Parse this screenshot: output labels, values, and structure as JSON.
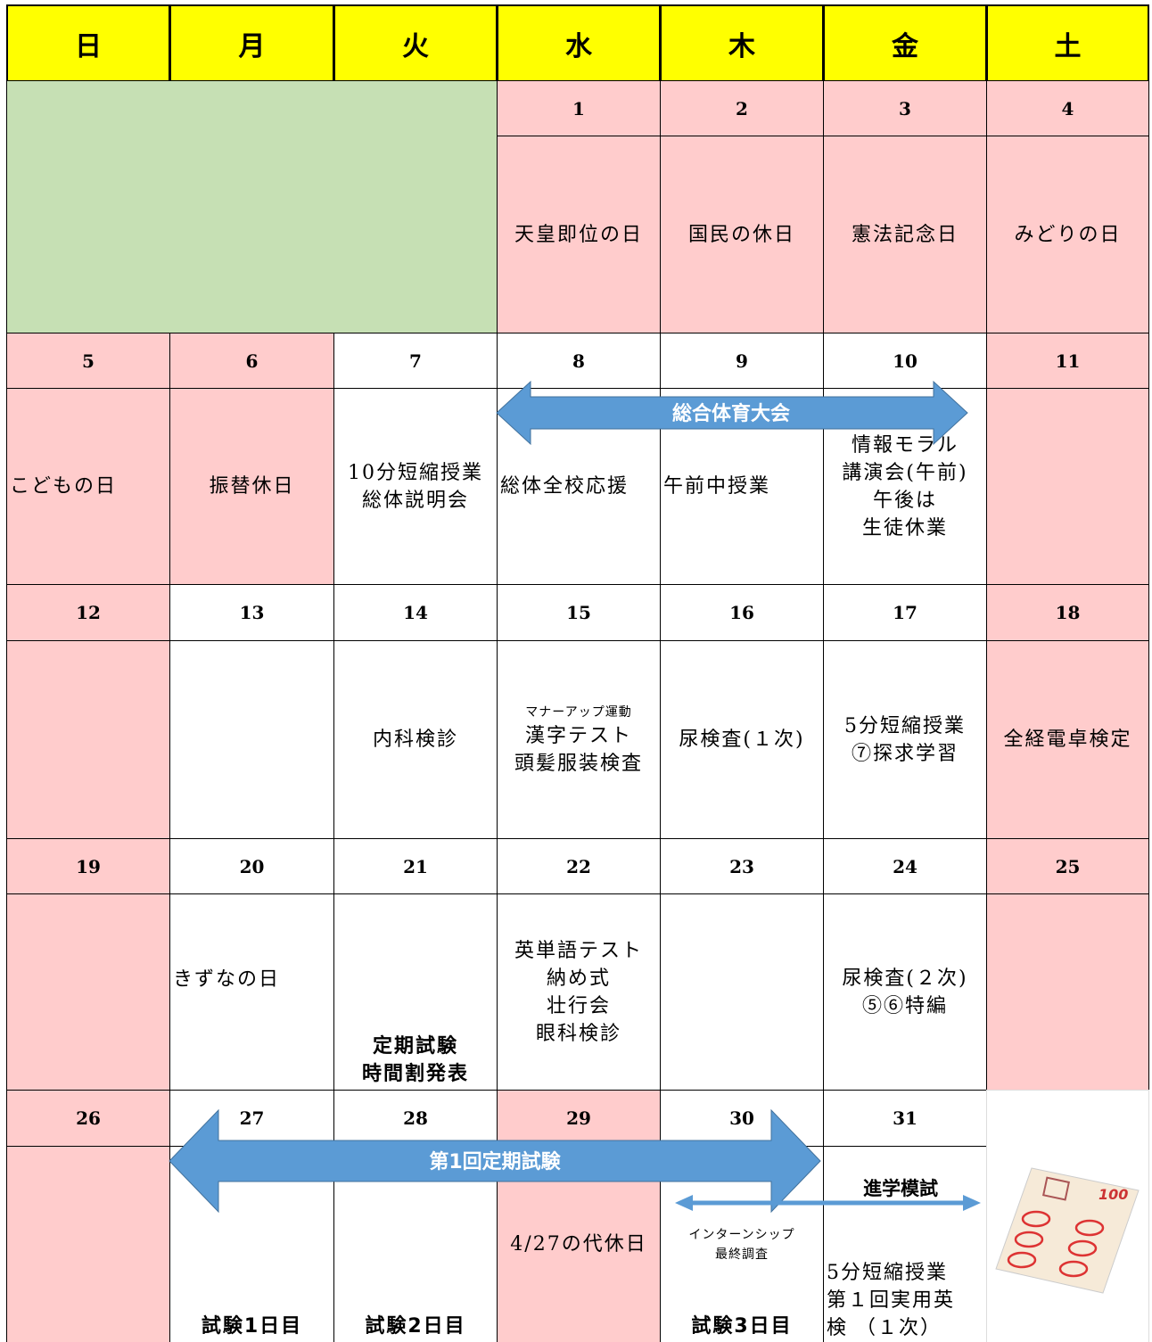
{
  "header": {
    "days": [
      "日",
      "月",
      "火",
      "水",
      "木",
      "金",
      "土"
    ]
  },
  "weeks": [
    {
      "cells": [
        {
          "date": null
        },
        {
          "date": null
        },
        {
          "date": null
        },
        {
          "date": 1,
          "holiday": true,
          "lines": [
            "天皇即位の日"
          ]
        },
        {
          "date": 2,
          "holiday": true,
          "lines": [
            "国民の休日"
          ]
        },
        {
          "date": 3,
          "holiday": true,
          "lines": [
            "憲法記念日"
          ]
        },
        {
          "date": 4,
          "holiday": true,
          "lines": [
            "みどりの日"
          ]
        }
      ]
    },
    {
      "cells": [
        {
          "date": 5,
          "holiday": true,
          "lines": [
            "こどもの日"
          ]
        },
        {
          "date": 6,
          "holiday": true,
          "lines": [
            "振替休日"
          ]
        },
        {
          "date": 7,
          "lines": [
            "10分短縮授業",
            "総体説明会"
          ]
        },
        {
          "date": 8,
          "lines": [
            "総体全校応援"
          ]
        },
        {
          "date": 9,
          "lines": [
            "午前中授業"
          ]
        },
        {
          "date": 10,
          "lines": [
            "情報モラル",
            "講演会(午前)",
            "午後は",
            "生徒休業"
          ]
        },
        {
          "date": 11,
          "holiday": true
        }
      ]
    },
    {
      "cells": [
        {
          "date": 12,
          "holiday": true
        },
        {
          "date": 13
        },
        {
          "date": 14,
          "lines": [
            "内科検診"
          ]
        },
        {
          "date": 15,
          "small": [
            "マナーアップ運動"
          ],
          "lines": [
            "漢字テスト",
            "頭髪服装検査"
          ]
        },
        {
          "date": 16,
          "lines": [
            "尿検査(１次)"
          ]
        },
        {
          "date": 17,
          "lines": [
            "5分短縮授業",
            "⑦探求学習"
          ]
        },
        {
          "date": 18,
          "holiday": true,
          "lines": [
            "全経電卓検定"
          ]
        }
      ]
    },
    {
      "cells": [
        {
          "date": 19,
          "holiday": true
        },
        {
          "date": 20,
          "lines": [
            "きずなの日"
          ]
        },
        {
          "date": 21,
          "bold": [
            "定期試験",
            "時間割発表"
          ]
        },
        {
          "date": 22,
          "lines": [
            "英単語テスト",
            "納め式",
            "壮行会",
            "眼科検診"
          ]
        },
        {
          "date": 23
        },
        {
          "date": 24,
          "lines": [
            "尿検査(２次)",
            "⑤⑥特編"
          ]
        },
        {
          "date": 25,
          "holiday": true
        }
      ]
    },
    {
      "cells": [
        {
          "date": 26,
          "holiday": true
        },
        {
          "date": 27,
          "bold": [
            "試験1日目"
          ]
        },
        {
          "date": 28,
          "bold": [
            "試験2日目"
          ]
        },
        {
          "date": 29,
          "holiday": true,
          "lines": [
            "4/27の代休日"
          ]
        },
        {
          "date": 30,
          "small": [
            "インターンシップ",
            "最終調査"
          ],
          "bold": [
            "試験3日目"
          ]
        },
        {
          "date": 31,
          "lines": [
            "5分短縮授業",
            "第１回実用英",
            "検 （１次）"
          ]
        },
        {
          "date": null
        }
      ]
    }
  ],
  "arrows": [
    {
      "label": "総合体育大会"
    },
    {
      "label": "第1回定期試験"
    },
    {
      "label": "進学模試"
    }
  ]
}
